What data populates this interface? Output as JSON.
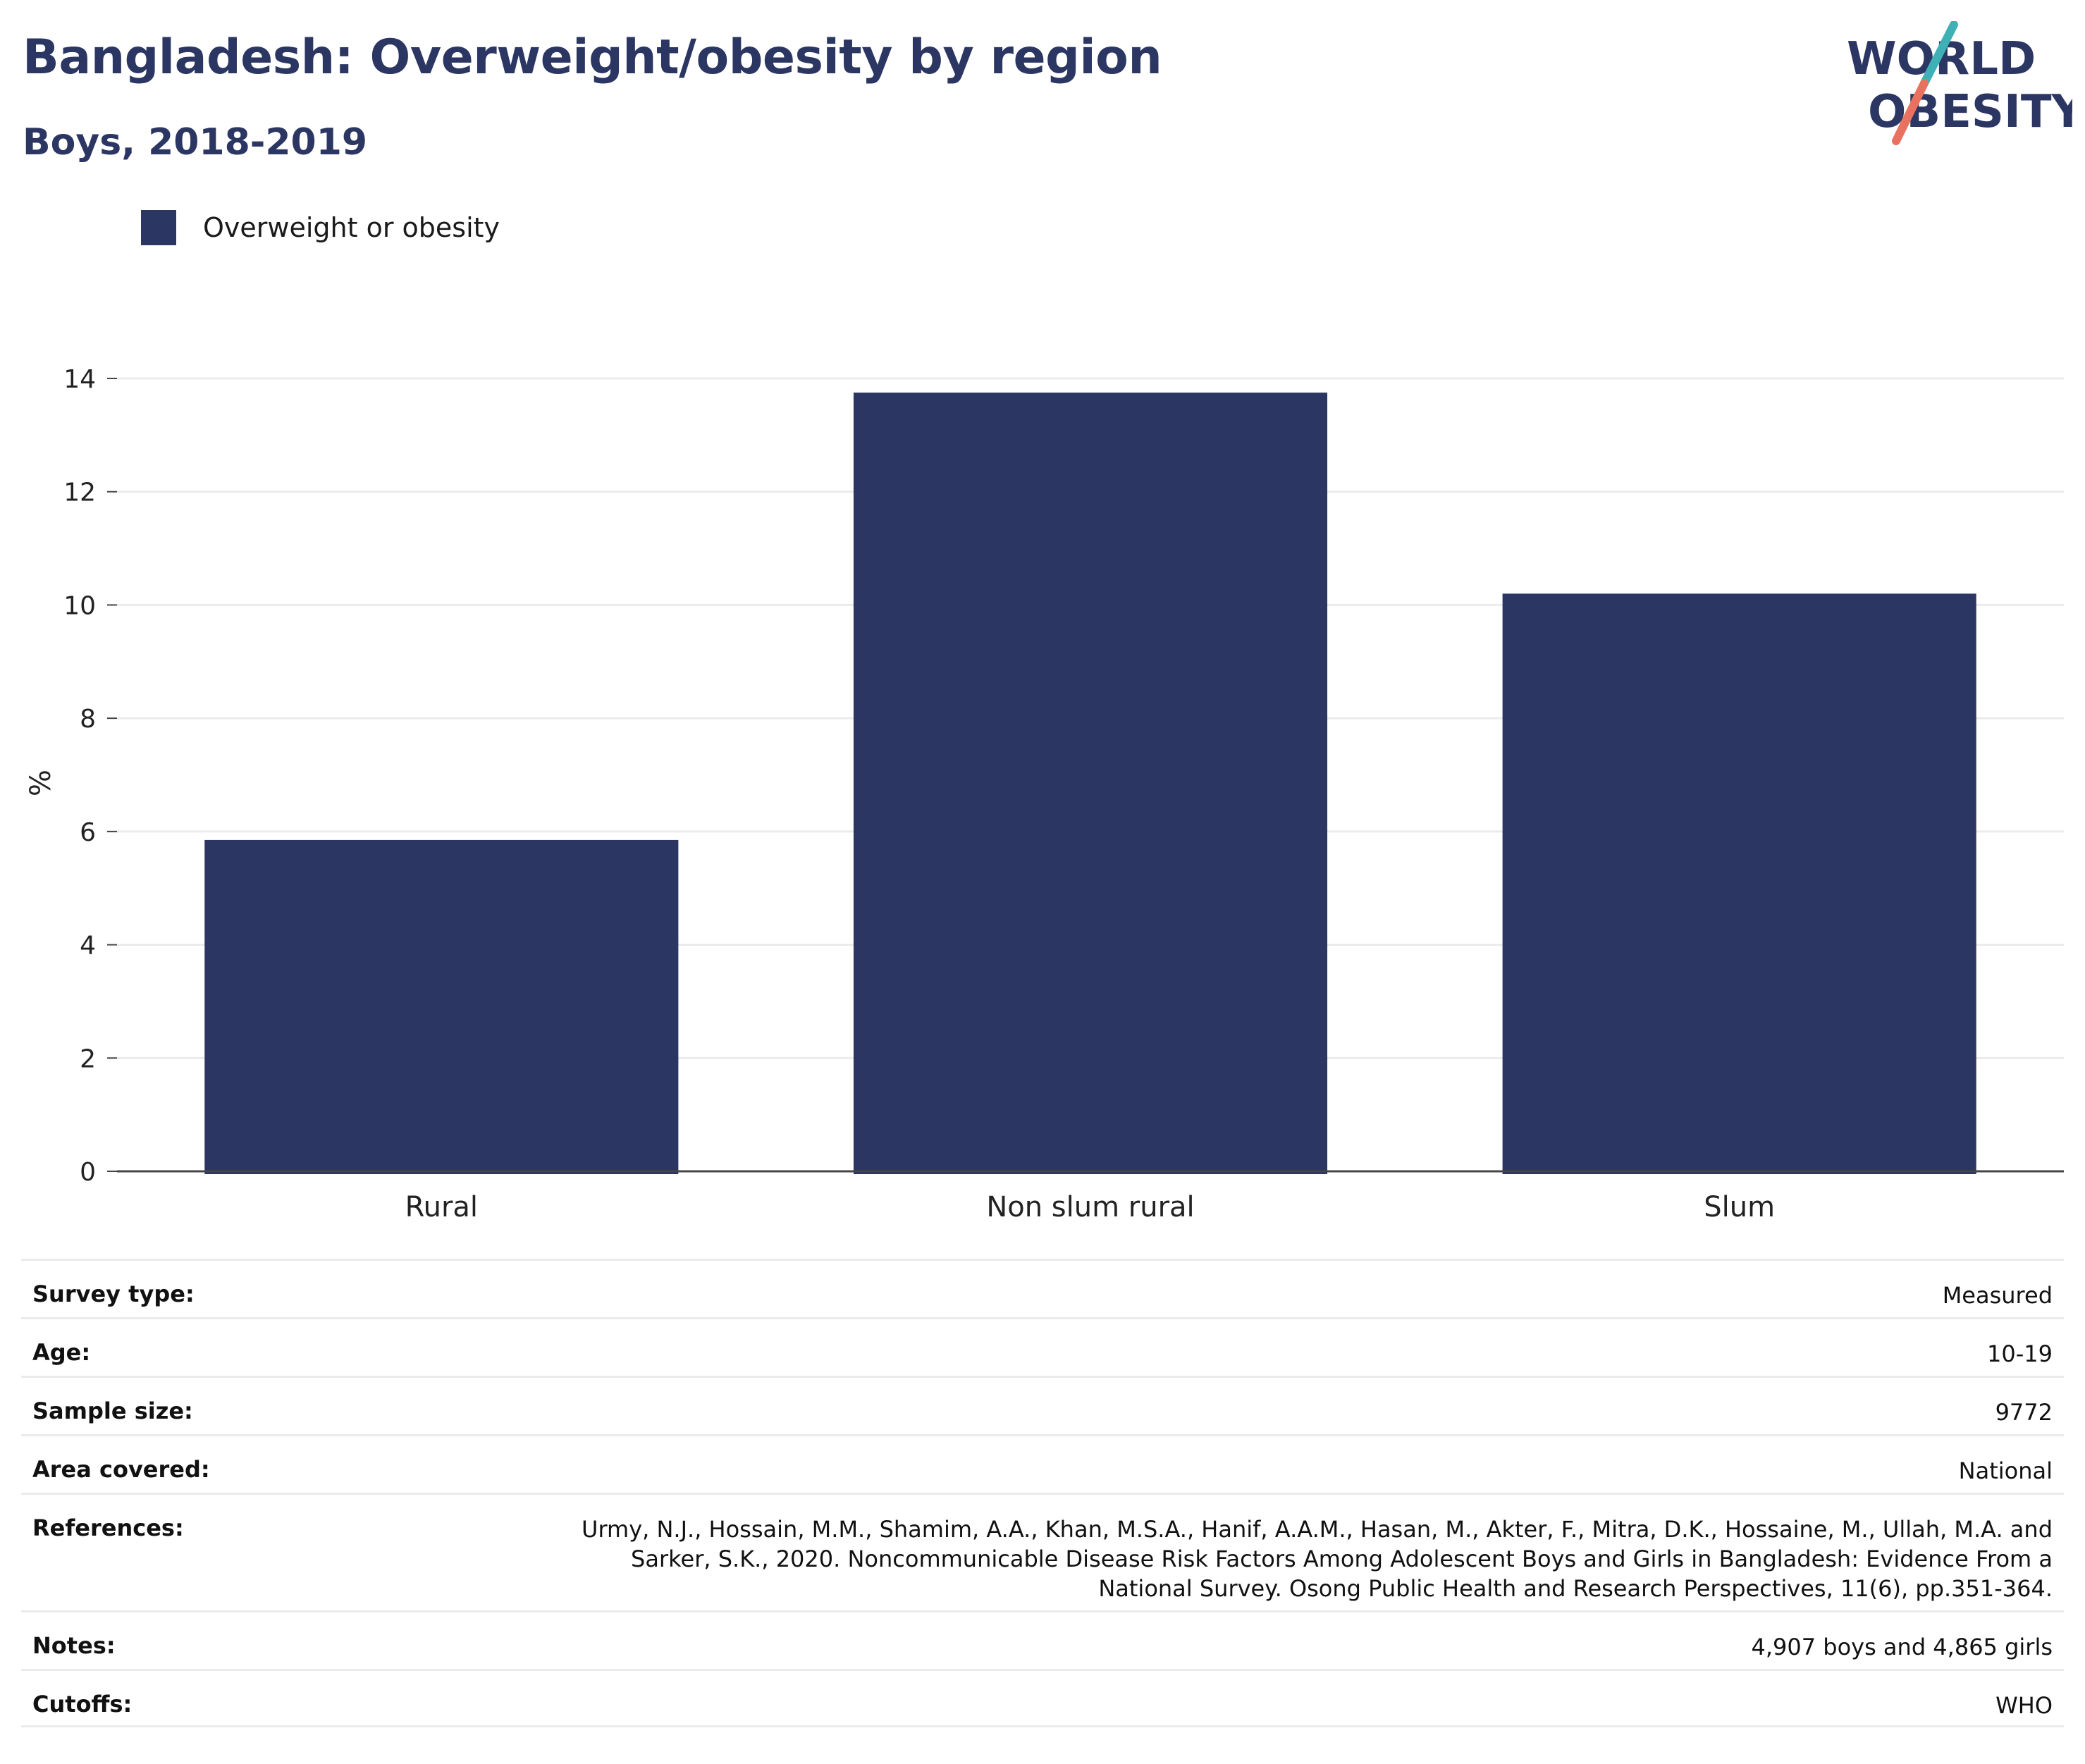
{
  "header": {
    "title": "Bangladesh: Overweight/obesity by region",
    "subtitle": "Boys, 2018-2019"
  },
  "logo": {
    "line1": "WORLD",
    "line2": "OBESITY"
  },
  "colors": {
    "bar": "#2b3663",
    "accent_teal": "#3fb1b6",
    "accent_coral": "#e8715f",
    "grid": "#ebebeb"
  },
  "chart_data": {
    "type": "bar",
    "categories": [
      "Rural",
      "Non slum rural",
      "Slum"
    ],
    "series": [
      {
        "name": "Overweight or obesity",
        "values": [
          5.85,
          13.75,
          10.2
        ]
      }
    ],
    "ylabel": "%",
    "ylim": [
      0,
      14
    ],
    "yticks": [
      0,
      2,
      4,
      6,
      8,
      10,
      12,
      14
    ],
    "grid": true,
    "legend": "top-left"
  },
  "meta": [
    {
      "label": "Survey type:",
      "value": "Measured"
    },
    {
      "label": "Age:",
      "value": "10-19"
    },
    {
      "label": "Sample size:",
      "value": "9772"
    },
    {
      "label": "Area covered:",
      "value": "National"
    },
    {
      "label": "References:",
      "value": "Urmy, N.J., Hossain, M.M., Shamim, A.A., Khan, M.S.A., Hanif, A.A.M., Hasan, M., Akter, F., Mitra, D.K., Hossaine, M., Ullah, M.A. and Sarker, S.K., 2020. Noncommunicable Disease Risk Factors Among Adolescent Boys and Girls in Bangladesh: Evidence From a National Survey. Osong Public Health and Research Perspectives, 11(6), pp.351-364."
    },
    {
      "label": "Notes:",
      "value": "4,907 boys and 4,865 girls"
    },
    {
      "label": "Cutoffs:",
      "value": "WHO"
    }
  ]
}
